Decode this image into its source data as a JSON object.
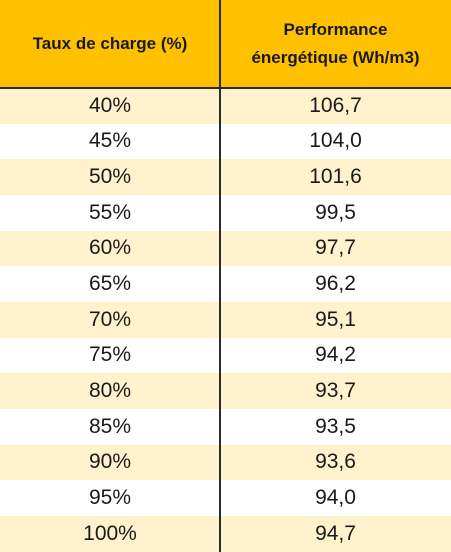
{
  "table": {
    "headers": [
      [
        "Taux de charge (%)"
      ],
      [
        "Performance",
        "énergétique (Wh/m3)"
      ]
    ],
    "rows": [
      [
        "40%",
        "106,7"
      ],
      [
        "45%",
        "104,0"
      ],
      [
        "50%",
        "101,6"
      ],
      [
        "55%",
        "99,5"
      ],
      [
        "60%",
        "97,7"
      ],
      [
        "65%",
        "96,2"
      ],
      [
        "70%",
        "95,1"
      ],
      [
        "75%",
        "94,2"
      ],
      [
        "80%",
        "93,7"
      ],
      [
        "85%",
        "93,5"
      ],
      [
        "90%",
        "93,6"
      ],
      [
        "95%",
        "94,0"
      ],
      [
        "100%",
        "94,7"
      ]
    ]
  },
  "colors": {
    "header_bg": "#ffc000",
    "row_alt_bg": "#fff2cc",
    "border": "#2b2b2b"
  }
}
